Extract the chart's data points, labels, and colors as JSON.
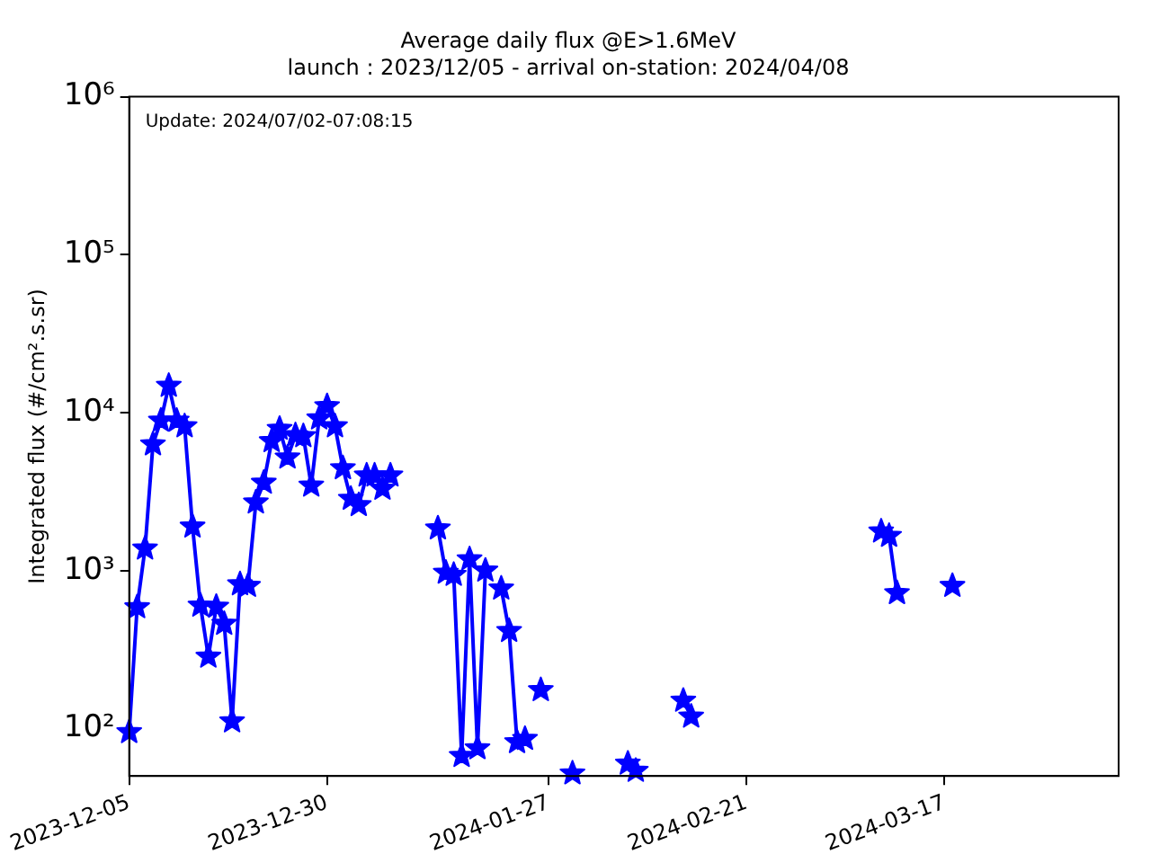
{
  "chart_data": {
    "type": "line",
    "title": "Average daily flux @E>1.6MeV",
    "subtitle": "launch : 2023/12/05 - arrival on-station: 2024/04/08",
    "ylabel": "Integrated flux (#/cm².s.sr)",
    "annotations": [
      "Update: 2024/07/02-07:08:15"
    ],
    "log": "y",
    "grid": false,
    "legend": false,
    "marker": "star",
    "line_style": "solid",
    "xlim": [
      "2023-12-05",
      "2024-04-08"
    ],
    "xticks": [
      "2023-12-05",
      "2023-12-30",
      "2024-01-27",
      "2024-02-21",
      "2024-03-17"
    ],
    "ylim": [
      50,
      1000000
    ],
    "yticks": [
      {
        "value": 100,
        "label": "10²"
      },
      {
        "value": 1000,
        "label": "10³"
      },
      {
        "value": 10000,
        "label": "10⁴"
      },
      {
        "value": 100000,
        "label": "10⁵"
      },
      {
        "value": 1000000,
        "label": "10⁶"
      }
    ],
    "series": [
      {
        "color": "#0000ff",
        "x": [
          "2023-12-05",
          "2023-12-06",
          "2023-12-07",
          "2023-12-08",
          "2023-12-09",
          "2023-12-10",
          "2023-12-11",
          "2023-12-12",
          "2023-12-13",
          "2023-12-14",
          "2023-12-15",
          "2023-12-16",
          "2023-12-17",
          "2023-12-18",
          "2023-12-19",
          "2023-12-20",
          "2023-12-21",
          "2023-12-22",
          "2023-12-23",
          "2023-12-24",
          "2023-12-25",
          "2023-12-26",
          "2023-12-27",
          "2023-12-28",
          "2023-12-29",
          "2023-12-30",
          "2023-12-31",
          "2024-01-01",
          "2024-01-02",
          "2024-01-03",
          "2024-01-04",
          "2024-01-05",
          "2024-01-06",
          "2024-01-07",
          "2024-01-08",
          "2024-01-13",
          "2024-01-14",
          "2024-01-15",
          "2024-01-16",
          "2024-01-17",
          "2024-01-18",
          "2024-01-19",
          "2024-01-20",
          "2024-01-21",
          "2024-01-22",
          "2024-01-23",
          "2024-01-24",
          "2024-01-25",
          "2024-01-26",
          "2024-01-27",
          "2024-01-30",
          "2024-01-31",
          "2024-02-06",
          "2024-02-07",
          "2024-02-08",
          "2024-02-13",
          "2024-02-14",
          "2024-02-15",
          "2024-03-09",
          "2024-03-10",
          "2024-03-11",
          "2024-03-12",
          "2024-03-18"
        ],
        "values": [
          95,
          586,
          1380,
          6300,
          8900,
          14800,
          8900,
          8200,
          1900,
          600,
          285,
          590,
          460,
          111,
          820,
          800,
          2700,
          3600,
          6600,
          7900,
          5200,
          7200,
          7100,
          3450,
          9200,
          11000,
          8200,
          4450,
          2850,
          2600,
          4000,
          4000,
          3300,
          4000,
          null,
          1850,
          970,
          940,
          67,
          1180,
          75,
          1000,
          null,
          770,
          415,
          82,
          86,
          null,
          175,
          null,
          52,
          null,
          60,
          54,
          null,
          150,
          119,
          null,
          1770,
          1660,
          720,
          null,
          800
        ]
      }
    ]
  }
}
